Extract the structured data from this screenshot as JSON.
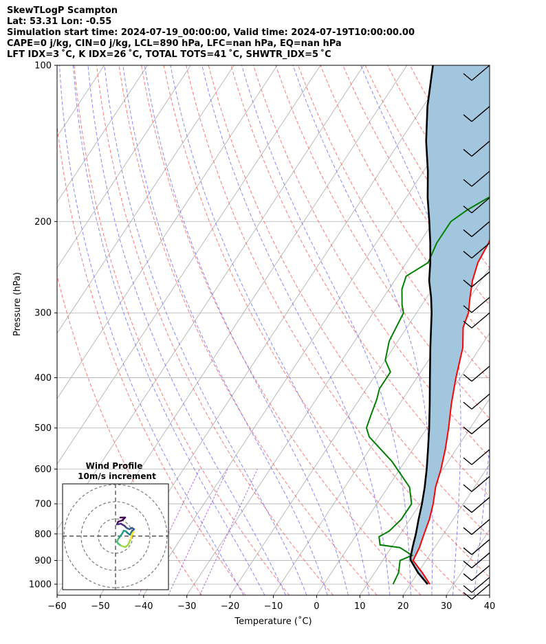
{
  "header": {
    "line1": "SkewTLogP Scampton",
    "line2": "Lat: 53.31   Lon: -0.55",
    "line3": "Simulation start time: 2024-07-19_00:00:00, Valid time: 2024-07-19T10:00:00.00",
    "line4": "CAPE=0 j/kg, CIN=0 j/kg, LCL=890 hPa, LFC=nan hPa, EQ=nan hPa",
    "line5": "LFT IDX=3 ˚C, K IDX=26 ˚C, TOTAL TOTS=41 ˚C, SHWTR_IDX=5 ˚C"
  },
  "chart_data": {
    "type": "line",
    "subtype": "skew-t log-p",
    "xlabel": "Temperature (˚C)",
    "ylabel": "Pressure (hPa)",
    "xlim": [
      -60,
      40
    ],
    "ylim": [
      1050,
      100
    ],
    "x_ticks": [
      "−60",
      "−50",
      "−40",
      "−30",
      "−20",
      "−10",
      "0",
      "10",
      "20",
      "30",
      "40"
    ],
    "y_ticks": [
      "100",
      "200",
      "300",
      "400",
      "500",
      "600",
      "700",
      "800",
      "900",
      "1000"
    ],
    "y_scale": "log",
    "grid": true,
    "colors": {
      "temperature": "#ff0000",
      "dewpoint": "#008000",
      "parcel": "#000000",
      "cape_fill": "#a3c6df",
      "dry_adiabat": "#ff6060",
      "moist_adiabat": "#6060ff",
      "mixing_ratio": "#9b30c8",
      "isotherm": "#aaaaaa"
    },
    "series": [
      {
        "id": "temperature",
        "points": [
          [
            24.5,
            1000
          ],
          [
            21,
            950
          ],
          [
            17,
            900
          ],
          [
            16.5,
            850
          ],
          [
            15.5,
            800
          ],
          [
            14.5,
            750
          ],
          [
            13,
            700
          ],
          [
            11,
            650
          ],
          [
            9.5,
            600
          ],
          [
            7.5,
            550
          ],
          [
            5,
            500
          ],
          [
            2,
            450
          ],
          [
            -1,
            400
          ],
          [
            -4,
            350
          ],
          [
            -7,
            320
          ],
          [
            -8,
            300
          ],
          [
            -10,
            280
          ],
          [
            -12,
            260
          ],
          [
            -13.5,
            240
          ],
          [
            -14,
            220
          ],
          [
            -15,
            205
          ],
          [
            -15,
            200
          ],
          [
            -13,
            190
          ],
          [
            -8,
            175
          ],
          [
            -2,
            165
          ],
          [
            2,
            155
          ],
          [
            3,
            145
          ],
          [
            5,
            130
          ],
          [
            7,
            120
          ],
          [
            11,
            100
          ]
        ]
      },
      {
        "id": "dewpoint",
        "points": [
          [
            16,
            1000
          ],
          [
            15.5,
            950
          ],
          [
            14,
            900
          ],
          [
            16,
            880
          ],
          [
            12,
            850
          ],
          [
            7,
            840
          ],
          [
            5.5,
            810
          ],
          [
            7,
            790
          ],
          [
            8,
            750
          ],
          [
            8,
            700
          ],
          [
            5,
            650
          ],
          [
            -3,
            580
          ],
          [
            -12,
            520
          ],
          [
            -14,
            500
          ],
          [
            -15,
            470
          ],
          [
            -16,
            440
          ],
          [
            -17,
            420
          ],
          [
            -17,
            390
          ],
          [
            -20,
            370
          ],
          [
            -22,
            340
          ],
          [
            -23,
            300
          ],
          [
            -24.5,
            290
          ],
          [
            -27,
            270
          ],
          [
            -28,
            255
          ],
          [
            -25,
            240
          ],
          [
            -26,
            220
          ],
          [
            -26,
            200
          ],
          [
            -24,
            190
          ],
          [
            -21,
            180
          ],
          [
            -18,
            175
          ],
          [
            -17,
            170
          ],
          [
            -16,
            165
          ],
          [
            -17,
            155
          ],
          [
            -19,
            140
          ],
          [
            -16,
            125
          ],
          [
            -4,
            110
          ],
          [
            -1,
            100
          ]
        ]
      },
      {
        "id": "parcel",
        "points": [
          [
            24,
            1000
          ],
          [
            20,
            950
          ],
          [
            16.5,
            900
          ],
          [
            16,
            890
          ],
          [
            14.9,
            850
          ],
          [
            13.6,
            800
          ],
          [
            12,
            750
          ],
          [
            10.4,
            700
          ],
          [
            8.5,
            650
          ],
          [
            6.2,
            600
          ],
          [
            3.5,
            550
          ],
          [
            0.5,
            500
          ],
          [
            -3,
            450
          ],
          [
            -7,
            400
          ],
          [
            -11.5,
            350
          ],
          [
            -16.5,
            300
          ],
          [
            -19,
            280
          ],
          [
            -22,
            260
          ],
          [
            -24.5,
            240
          ],
          [
            -27.5,
            220
          ],
          [
            -31,
            200
          ],
          [
            -35,
            180
          ],
          [
            -39,
            160
          ],
          [
            -44,
            140
          ],
          [
            -49,
            120
          ],
          [
            -54,
            100
          ]
        ]
      }
    ],
    "wind_barbs": [
      {
        "p": 100
      },
      {
        "p": 120
      },
      {
        "p": 140
      },
      {
        "p": 160
      },
      {
        "p": 180
      },
      {
        "p": 200
      },
      {
        "p": 220
      },
      {
        "p": 250
      },
      {
        "p": 280
      },
      {
        "p": 300
      },
      {
        "p": 380
      },
      {
        "p": 430
      },
      {
        "p": 480
      },
      {
        "p": 550
      },
      {
        "p": 620
      },
      {
        "p": 680
      },
      {
        "p": 750
      },
      {
        "p": 820
      },
      {
        "p": 870
      },
      {
        "p": 920
      },
      {
        "p": 970
      },
      {
        "p": 1000
      }
    ],
    "inset": {
      "title": "Wind Profile",
      "subtitle": "10m/s increment"
    }
  }
}
